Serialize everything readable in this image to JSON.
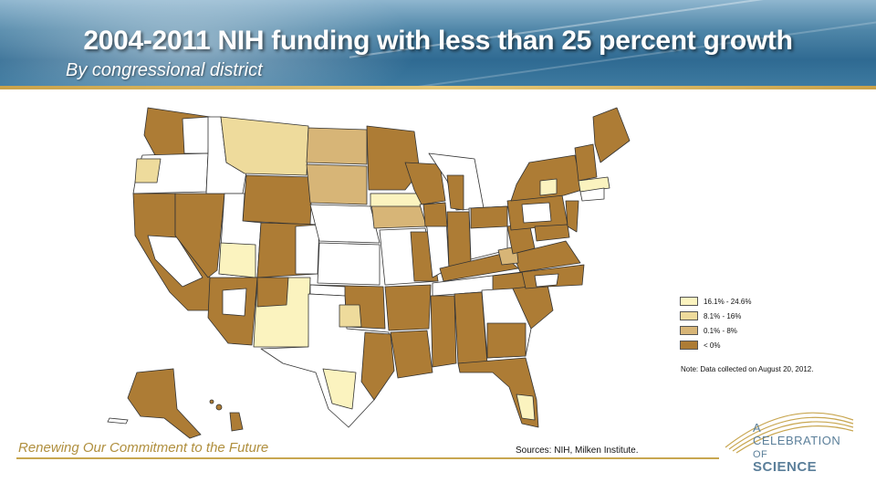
{
  "header": {
    "title": "2004-2011 NIH funding with less than 25 percent growth",
    "subtitle": "By congressional district"
  },
  "legend": {
    "items": [
      {
        "label": "16.1% - 24.6%",
        "color": "#fbf3bf"
      },
      {
        "label": "8.1% - 16%",
        "color": "#eedb9c"
      },
      {
        "label": "0.1% - 8%",
        "color": "#d7b577"
      },
      {
        "label": "< 0%",
        "color": "#ad7c35"
      }
    ],
    "note": "Note: Data collected on August 20, 2012."
  },
  "colors": {
    "no_data": "#ffffff",
    "outline": "#333333",
    "accent_gold": "#c8a650",
    "header_blue": "#2f6a92"
  },
  "footer": {
    "tagline": "Renewing Our Commitment to the Future",
    "sources": "Sources: NIH, Milken Institute."
  },
  "logo": {
    "line1": "A",
    "line2": "CELEBRATION",
    "line3_prefix": "OF",
    "line3_word": "SCIENCE"
  }
}
